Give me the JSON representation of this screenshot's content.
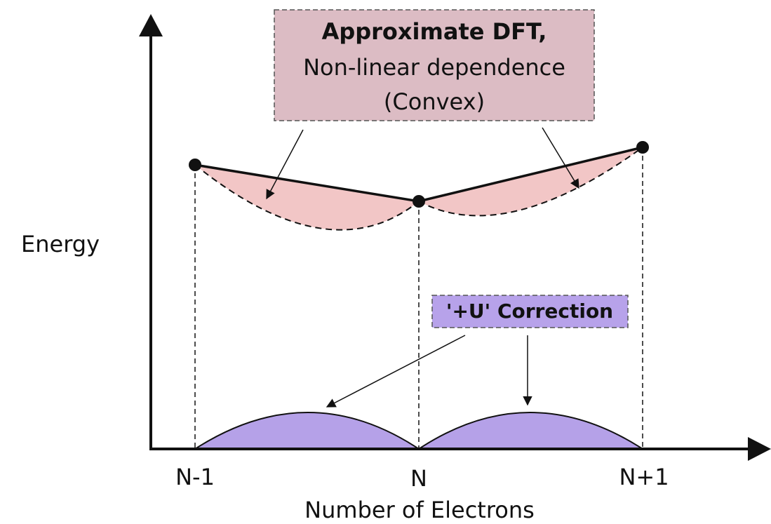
{
  "axes": {
    "y_label": "Energy",
    "x_label": "Number of Electrons",
    "x_ticks": [
      "N-1",
      "N",
      "N+1"
    ]
  },
  "dft_box": {
    "title": "Approximate DFT,",
    "line1": "Non-linear dependence",
    "line2": "(Convex)"
  },
  "u_box": {
    "label": "'+U' Correction"
  }
}
